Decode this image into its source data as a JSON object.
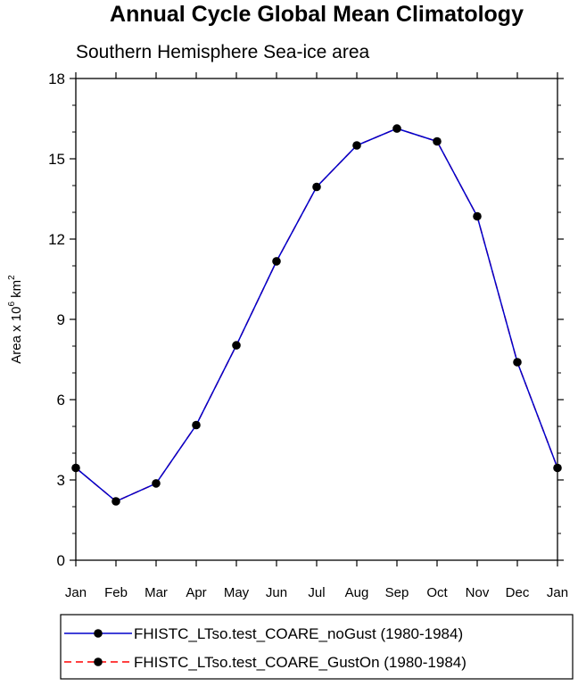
{
  "chart_data": {
    "type": "line",
    "title": "Annual Cycle Global Mean Climatology",
    "subtitle": "Southern Hemisphere Sea-ice area",
    "ylabel": {
      "base": "Area x 10",
      "exp1": "6",
      "unit": " km",
      "exp2": "2"
    },
    "categories": [
      "Jan",
      "Feb",
      "Mar",
      "Apr",
      "May",
      "Jun",
      "Jul",
      "Aug",
      "Sep",
      "Oct",
      "Nov",
      "Dec",
      "Jan"
    ],
    "ylim": [
      0,
      18
    ],
    "yticks": [
      "0",
      "3",
      "6",
      "9",
      "12",
      "15",
      "18"
    ],
    "series": [
      {
        "name": "FHISTC_LTso.test_COARE_noGust (1980-1984)",
        "color": "#0000cc",
        "dash": "solid",
        "values": [
          3.45,
          2.2,
          2.87,
          5.05,
          8.03,
          11.17,
          13.95,
          15.5,
          16.13,
          15.65,
          12.85,
          7.4,
          3.45
        ]
      },
      {
        "name": "FHISTC_LTso.test_COARE_GustOn (1980-1984)",
        "color": "#ff0000",
        "dash": "dashed",
        "values": [
          3.45,
          2.2,
          2.87,
          5.05,
          8.03,
          11.17,
          13.95,
          15.5,
          16.13,
          15.65,
          12.85,
          7.4,
          3.45
        ]
      }
    ],
    "marker_color": "#000000"
  }
}
